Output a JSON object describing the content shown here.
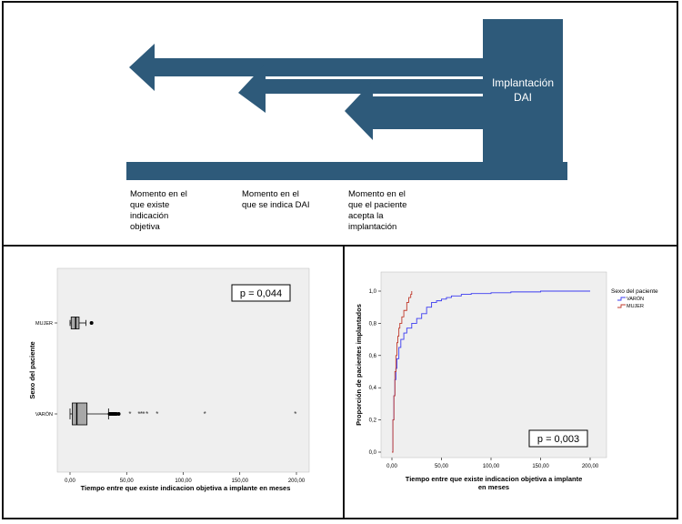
{
  "diagram": {
    "box_label_line1": "Implantación",
    "box_label_line2": "DAI",
    "moments": [
      "Momento en el\nque existe\nindicación\nobjetiva",
      "Momento en el\nque se indica DAI",
      "Momento en el\nque el paciente\nacepta la\nimplantación"
    ],
    "colors": {
      "fill": "#2e5a7a",
      "text": "#ffffff"
    }
  },
  "chart_data": [
    {
      "type": "boxplot",
      "orientation": "horizontal",
      "xlabel": "Tiempo entre que existe indicacion objetiva a implante en meses",
      "ylabel": "Sexo del paciente",
      "x_ticks": [
        "0,00",
        "50,00",
        "100,00",
        "150,00",
        "200,00"
      ],
      "xlim": [
        0,
        200
      ],
      "annotation": "p = 0,044",
      "background": "#efefef",
      "groups": [
        {
          "name": "MUJER",
          "min": 0,
          "q1": 1,
          "median": 5,
          "q3": 8,
          "max": 14,
          "outliers": [
            19
          ],
          "extremes": []
        },
        {
          "name": "VARÓN",
          "min": 0,
          "q1": 2,
          "median": 6,
          "q3": 15,
          "max": 34,
          "outliers": [
            35,
            36,
            37,
            38,
            39,
            40,
            41,
            43
          ],
          "extremes": [
            53,
            61,
            63,
            65,
            68,
            77,
            119,
            199
          ]
        }
      ]
    },
    {
      "type": "line",
      "step": true,
      "xlabel": "Tiempo entre que existe indicacion objetiva a implante en meses",
      "ylabel": "Proporción de pacientes implantados",
      "x_ticks": [
        "0,00",
        "50,00",
        "100,00",
        "150,00",
        "200,00"
      ],
      "y_ticks": [
        "0,0",
        "0,2",
        "0,4",
        "0,6",
        "0,8",
        "1,0"
      ],
      "xlim": [
        0,
        200
      ],
      "ylim": [
        0,
        1
      ],
      "annotation": "p = 0,003",
      "background": "#efefef",
      "legend": {
        "title": "Sexo del paciente",
        "placement": "right"
      },
      "series": [
        {
          "name": "VARÓN",
          "color": "#3b3bf0",
          "x": [
            0,
            1,
            2,
            3,
            4,
            5,
            7,
            9,
            12,
            15,
            20,
            25,
            30,
            35,
            40,
            45,
            50,
            55,
            60,
            70,
            80,
            100,
            120,
            150,
            200
          ],
          "y": [
            0,
            0.2,
            0.35,
            0.45,
            0.52,
            0.58,
            0.65,
            0.7,
            0.74,
            0.77,
            0.8,
            0.83,
            0.86,
            0.9,
            0.93,
            0.94,
            0.95,
            0.96,
            0.97,
            0.98,
            0.985,
            0.99,
            0.995,
            1.0,
            1.0
          ]
        },
        {
          "name": "MUJER",
          "color": "#c0392b",
          "x": [
            0,
            1,
            2,
            3,
            4,
            5,
            6,
            7,
            8,
            10,
            12,
            15,
            17,
            19,
            20
          ],
          "y": [
            0,
            0.2,
            0.35,
            0.5,
            0.6,
            0.68,
            0.72,
            0.77,
            0.8,
            0.84,
            0.88,
            0.93,
            0.96,
            0.98,
            1.0
          ]
        }
      ]
    }
  ]
}
